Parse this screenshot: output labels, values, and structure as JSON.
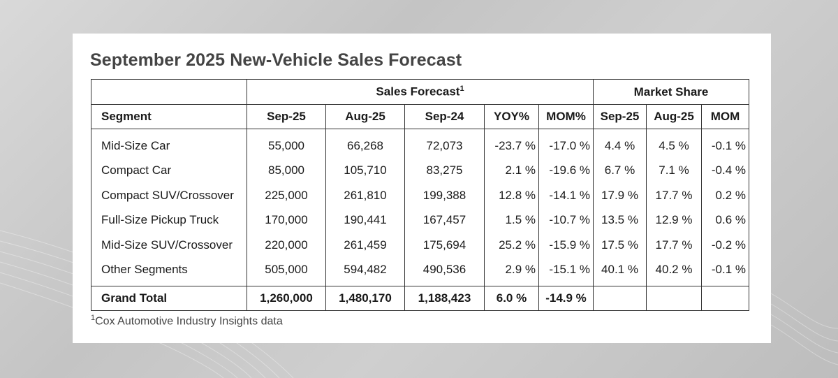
{
  "title": "September 2025 New-Vehicle Sales Forecast",
  "group_headers": {
    "sales_forecast": "Sales Forecast",
    "sales_forecast_sup": "1",
    "market_share": "Market Share"
  },
  "columns": {
    "segment": "Segment",
    "sf_sep25": "Sep-25",
    "sf_aug25": "Aug-25",
    "sf_sep24": "Sep-24",
    "yoy": "YOY%",
    "mom_pct": "MOM%",
    "ms_sep25": "Sep-25",
    "ms_aug25": "Aug-25",
    "ms_mom": "MOM"
  },
  "rows": [
    {
      "segment": "Mid-Size Car",
      "sep25": "55,000",
      "aug25": "66,268",
      "sep24": "72,073",
      "yoy": "-23.7 %",
      "mom": "-17.0 %",
      "ms_sep25": "4.4 %",
      "ms_aug25": "4.5 %",
      "ms_mom": "-0.1 %"
    },
    {
      "segment": "Compact Car",
      "sep25": "85,000",
      "aug25": "105,710",
      "sep24": "83,275",
      "yoy": "2.1 %",
      "mom": "-19.6 %",
      "ms_sep25": "6.7 %",
      "ms_aug25": "7.1 %",
      "ms_mom": "-0.4 %"
    },
    {
      "segment": "Compact SUV/Crossover",
      "sep25": "225,000",
      "aug25": "261,810",
      "sep24": "199,388",
      "yoy": "12.8 %",
      "mom": "-14.1 %",
      "ms_sep25": "17.9 %",
      "ms_aug25": "17.7 %",
      "ms_mom": "0.2 %"
    },
    {
      "segment": "Full-Size Pickup Truck",
      "sep25": "170,000",
      "aug25": "190,441",
      "sep24": "167,457",
      "yoy": "1.5 %",
      "mom": "-10.7 %",
      "ms_sep25": "13.5 %",
      "ms_aug25": "12.9 %",
      "ms_mom": "0.6 %"
    },
    {
      "segment": "Mid-Size SUV/Crossover",
      "sep25": "220,000",
      "aug25": "261,459",
      "sep24": "175,694",
      "yoy": "25.2 %",
      "mom": "-15.9 %",
      "ms_sep25": "17.5 %",
      "ms_aug25": "17.7 %",
      "ms_mom": "-0.2 %"
    },
    {
      "segment": "Other Segments",
      "sep25": "505,000",
      "aug25": "594,482",
      "sep24": "490,536",
      "yoy": "2.9 %",
      "mom": "-15.1 %",
      "ms_sep25": "40.1 %",
      "ms_aug25": "40.2 %",
      "ms_mom": "-0.1 %"
    }
  ],
  "total": {
    "segment": "Grand Total",
    "sep25": "1,260,000",
    "aug25": "1,480,170",
    "sep24": "1,188,423",
    "yoy": "6.0 %",
    "mom": "-14.9 %"
  },
  "footnote": {
    "sup": "1",
    "text": "Cox Automotive Industry Insights data"
  }
}
